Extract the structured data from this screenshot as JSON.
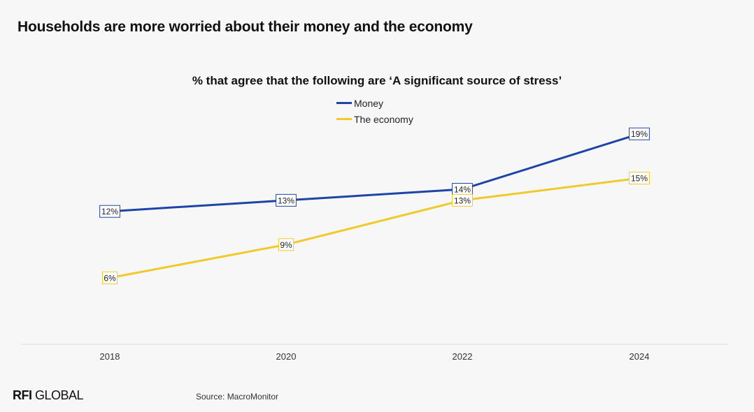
{
  "page_title": "Households are more worried about their money and the economy",
  "source": "Source: MacroMonitor",
  "logo": {
    "bold": "RFI",
    "rest": " GLOBAL"
  },
  "colors": {
    "money": "#1e44a8",
    "economy": "#f0ca2a",
    "axis": "#d8d8d8"
  },
  "chart_data": {
    "type": "line",
    "title": "% that agree that the following are ‘A significant source of stress’",
    "categories": [
      "2018",
      "2020",
      "2022",
      "2024"
    ],
    "series": [
      {
        "name": "Money",
        "values": [
          12,
          13,
          14,
          19
        ],
        "labels": [
          "12%",
          "13%",
          "14%",
          "19%"
        ]
      },
      {
        "name": "The economy",
        "values": [
          6,
          9,
          13,
          15
        ],
        "labels": [
          "6%",
          "9%",
          "13%",
          "15%"
        ]
      }
    ],
    "xlabel": "",
    "ylabel": "",
    "ylim": [
      0,
      21
    ],
    "grid": false,
    "legend": "top-center"
  }
}
